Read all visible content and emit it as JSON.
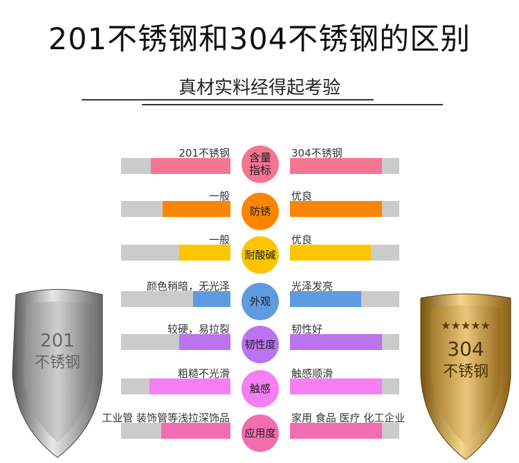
{
  "title": "201不锈钢和304不锈钢的区别",
  "subtitle": "真材实料经得起考验",
  "shields": {
    "left": {
      "line1": "201",
      "line2": "不锈钢"
    },
    "right": {
      "line1": "304",
      "line2": "不锈钢",
      "stars": 5
    }
  },
  "rows": [
    {
      "category": "含量指标",
      "left_label": "201不锈钢",
      "right_label": "304不锈钢",
      "left_level": 0.73,
      "right_level": 0.84,
      "color": "#f47592"
    },
    {
      "category": "防锈",
      "left_label": "一般",
      "right_label": "优良",
      "left_level": 0.62,
      "right_level": 0.84,
      "color": "#fb8500"
    },
    {
      "category": "耐酸碱",
      "left_label": "一般",
      "right_label": "优良",
      "left_level": 0.47,
      "right_level": 0.74,
      "color": "#fcc500"
    },
    {
      "category": "外观",
      "left_label": "颜色稍暗，无光泽",
      "right_label": "光泽发亮",
      "left_level": 0.34,
      "right_level": 0.65,
      "color": "#5f9be0"
    },
    {
      "category": "韧性度",
      "left_label": "较硬，易拉裂",
      "right_label": "韧性好",
      "left_level": 0.47,
      "right_level": 0.84,
      "color": "#bb73ef"
    },
    {
      "category": "触感",
      "left_label": "粗糙不光滑",
      "right_label": "触感顺滑",
      "left_level": 0.74,
      "right_level": 0.84,
      "color": "#f57ef5"
    },
    {
      "category": "应用度",
      "left_label": "工业管 装饰管等浅拉深饰品",
      "right_label": "家用 食品 医疗 化工企业",
      "left_level": 0.63,
      "right_level": 0.84,
      "color": "#f26db0"
    }
  ]
}
